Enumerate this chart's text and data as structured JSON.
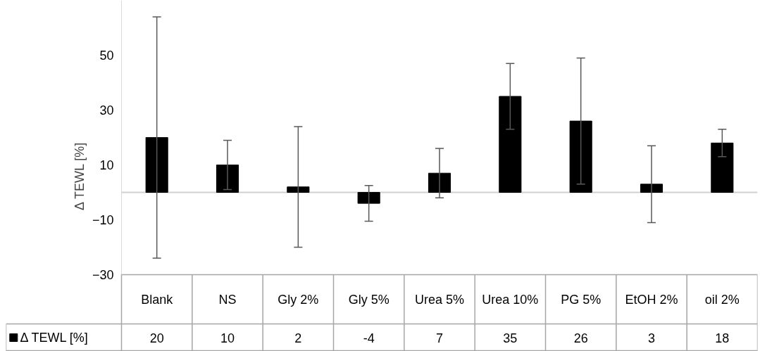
{
  "chart_data": {
    "type": "bar",
    "ylabel": "Δ TEWL [%]",
    "categories": [
      "Blank",
      "NS",
      "Gly 2%",
      "Gly 5%",
      "Urea 5%",
      "Urea 10%",
      "PG 5%",
      "EtOH 2%",
      "oil 2%"
    ],
    "series": [
      {
        "name": "Δ TEWL [%]",
        "color": "#000000",
        "values": [
          20,
          10,
          2,
          -4,
          7,
          35,
          26,
          3,
          18
        ],
        "errors": [
          44,
          9,
          22,
          6.5,
          9,
          12,
          23,
          14,
          5
        ]
      }
    ],
    "ylim": [
      -30,
      70
    ],
    "yticks": [
      -30,
      -10,
      10,
      30,
      50
    ],
    "data_labels": true,
    "legend": "bottom left"
  }
}
